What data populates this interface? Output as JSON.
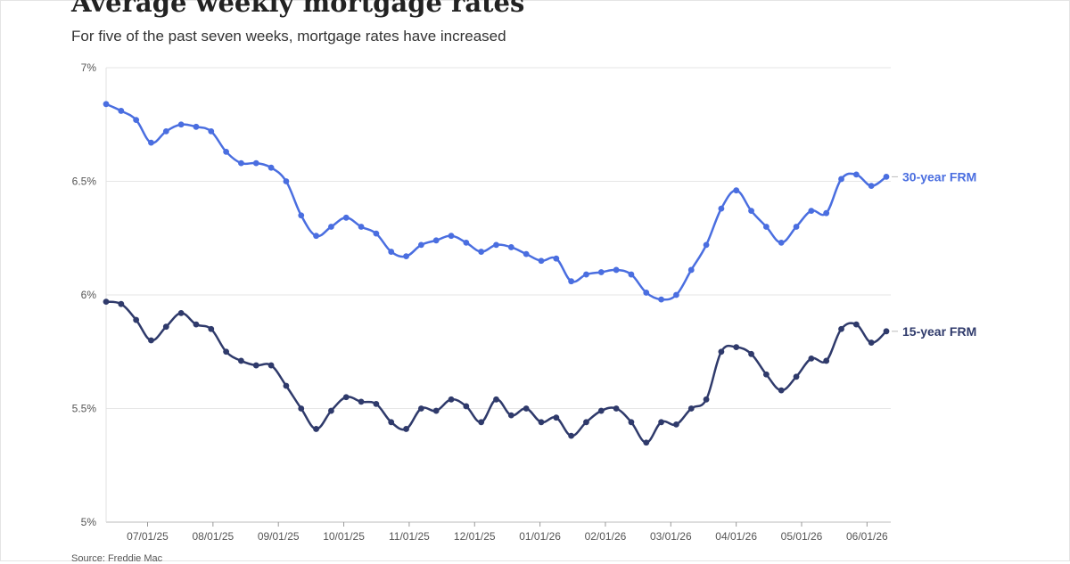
{
  "page": {
    "title": "Average weekly mortgage rates",
    "subtitle": "For five of the past seven weeks, mortgage rates have increased",
    "source": "Source: Freddie Mac"
  },
  "chart_data": {
    "type": "line",
    "title": "Average weekly mortgage rates",
    "subtitle": "For five of the past seven weeks, mortgage rates have increased",
    "xlabel": "",
    "ylabel": "",
    "ylim": [
      5,
      7
    ],
    "yticks": [
      5,
      5.5,
      6,
      6.5,
      7
    ],
    "ytick_labels": [
      "5%",
      "5.5%",
      "6%",
      "6.5%",
      "7%"
    ],
    "xtick_labels": [
      "07/01/25",
      "08/01/25",
      "09/01/25",
      "10/01/25",
      "11/01/25",
      "12/01/25",
      "01/01/26",
      "02/01/26",
      "03/01/26",
      "04/01/26",
      "05/01/26",
      "06/01/26"
    ],
    "grid": true,
    "legend": "direct labels at right end of lines",
    "series": [
      {
        "name": "30-year FRM",
        "color": "#4a6ee0",
        "values": [
          6.84,
          6.81,
          6.77,
          6.67,
          6.72,
          6.75,
          6.74,
          6.72,
          6.63,
          6.58,
          6.58,
          6.56,
          6.5,
          6.35,
          6.26,
          6.3,
          6.34,
          6.3,
          6.27,
          6.19,
          6.17,
          6.22,
          6.24,
          6.26,
          6.23,
          6.19,
          6.22,
          6.21,
          6.18,
          6.15,
          6.16,
          6.06,
          6.09,
          6.1,
          6.11,
          6.09,
          6.01,
          5.98,
          6.0,
          6.11,
          6.22,
          6.38,
          6.46,
          6.37,
          6.3,
          6.23,
          6.3,
          6.37,
          6.36,
          6.51,
          6.53,
          6.48,
          6.52
        ]
      },
      {
        "name": "15-year FRM",
        "color": "#2f3a6b",
        "values": [
          5.97,
          5.96,
          5.89,
          5.8,
          5.86,
          5.92,
          5.87,
          5.85,
          5.75,
          5.71,
          5.69,
          5.69,
          5.6,
          5.5,
          5.41,
          5.49,
          5.55,
          5.53,
          5.52,
          5.44,
          5.41,
          5.5,
          5.49,
          5.54,
          5.51,
          5.44,
          5.54,
          5.47,
          5.5,
          5.44,
          5.46,
          5.38,
          5.44,
          5.49,
          5.5,
          5.44,
          5.35,
          5.44,
          5.43,
          5.5,
          5.54,
          5.75,
          5.77,
          5.74,
          5.65,
          5.58,
          5.64,
          5.72,
          5.71,
          5.85,
          5.87,
          5.79,
          5.84
        ]
      }
    ]
  }
}
